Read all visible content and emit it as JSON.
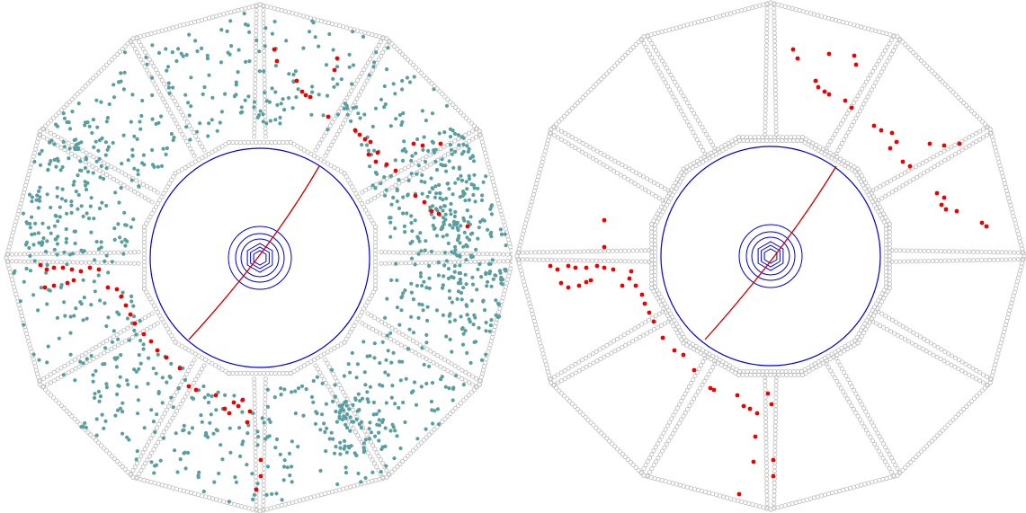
{
  "panels": [
    {
      "id": "left",
      "show_background_hits": true
    },
    {
      "id": "right",
      "show_background_hits": false
    }
  ],
  "colors": {
    "cell_outline": "#bdbdbd",
    "detector_line": "#0000cc",
    "track": "#cc0000",
    "signal_hit": "#ee0000",
    "background_hit": "#5a9ea0",
    "background": "#ffffff"
  },
  "detector": {
    "outer_sides": 12,
    "sector_boundaries": 12,
    "has_track": true
  }
}
